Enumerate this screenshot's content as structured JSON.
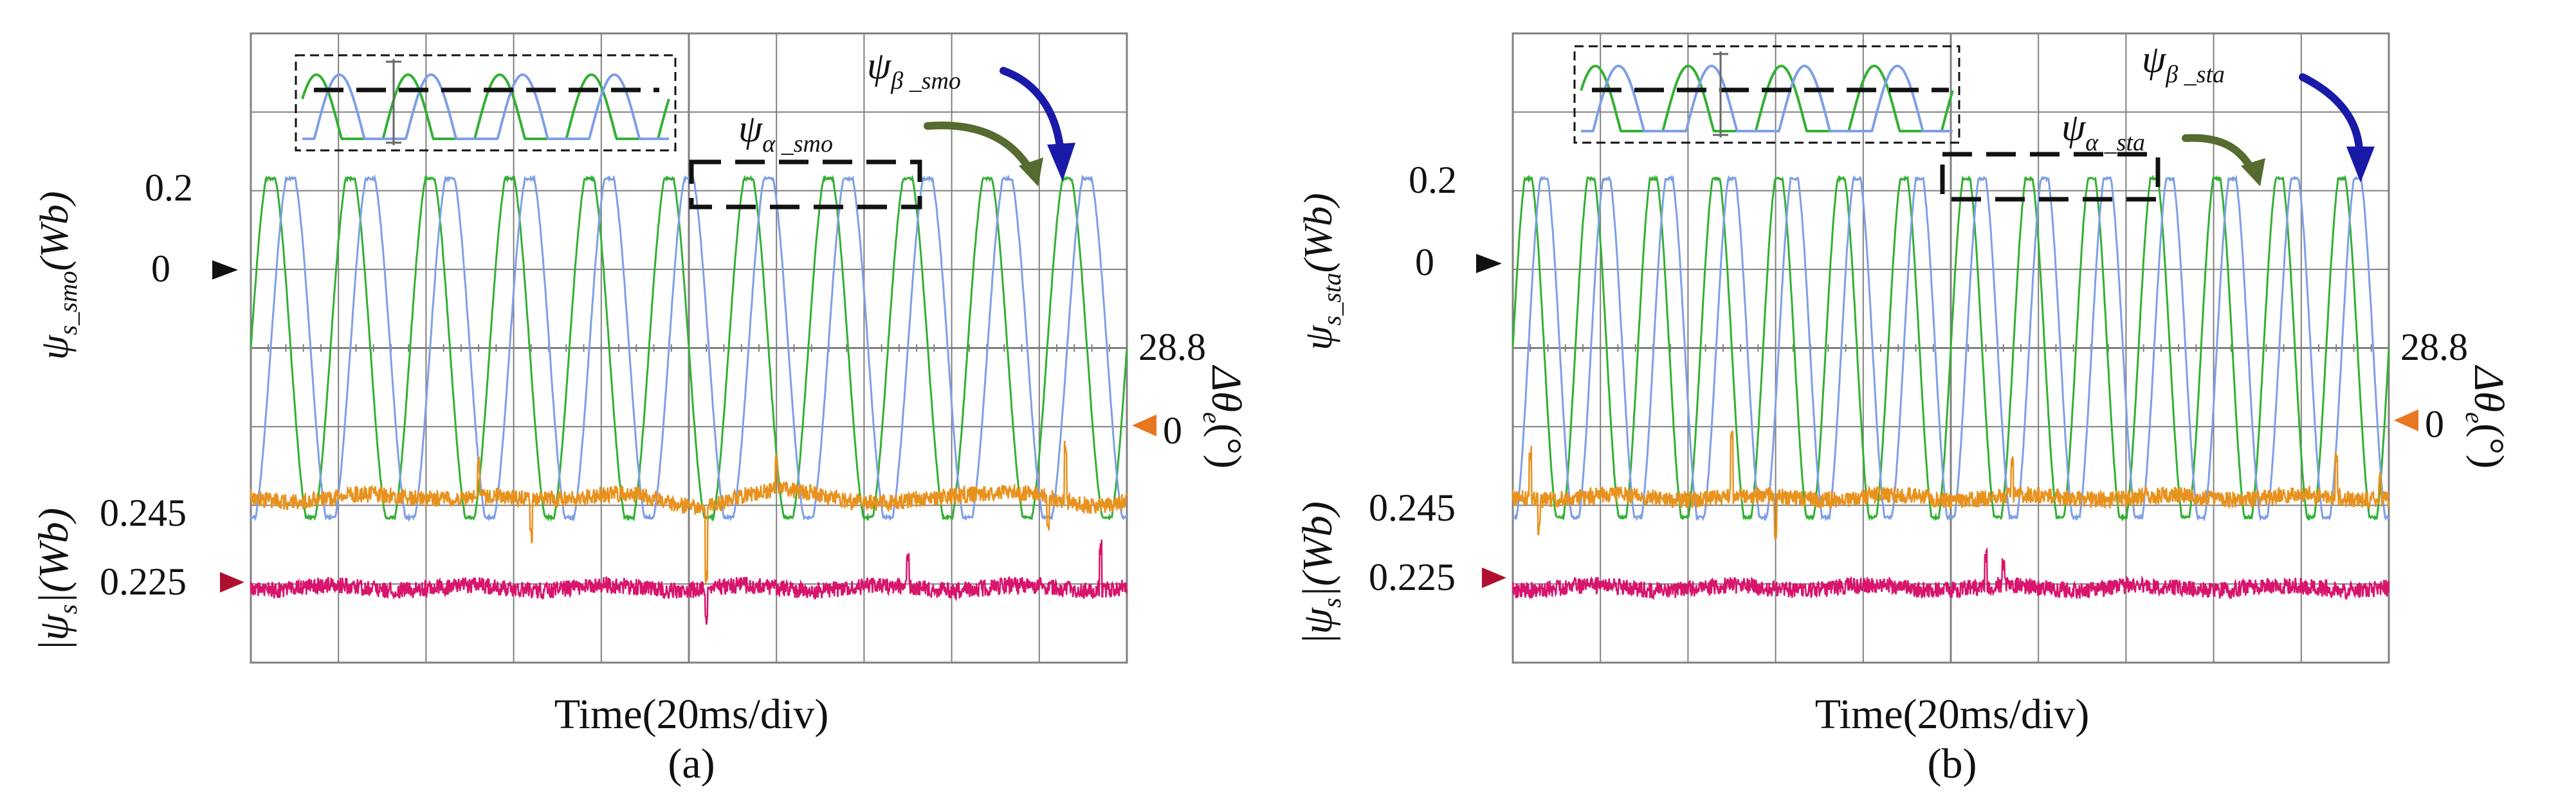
{
  "colors": {
    "psi_alpha": "#33b033",
    "psi_beta": "#7f9fe6",
    "theta": "#e8921e",
    "psi_mag": "#d8146c",
    "grid": "#808080",
    "zoom_arrow_alpha": "#556b2f",
    "zoom_arrow_beta": "#1a1aa8",
    "marker_zero": "#111111",
    "marker_theta": "#e87722",
    "marker_mag": "#b01030"
  },
  "panels": [
    {
      "caption": "(a)",
      "xlabel": "Time(20ms/div)",
      "ylabel_psi_main": "ψ",
      "ylabel_psi_sub": "s_smo",
      "ylabel_psi_unit": "(Wb)",
      "ylabel_mag_bar": "|",
      "ylabel_mag_main": "ψ",
      "ylabel_mag_sub": "s",
      "ylabel_mag_unit": "|(Wb)",
      "ylabel_theta_main": "Δθ",
      "ylabel_theta_sub": "e",
      "ylabel_theta_unit": "(°)",
      "tick_psi_02": "0.2",
      "tick_psi_0": "0",
      "tick_theta_288": "28.8",
      "tick_theta_0": "0",
      "tick_mag_0245": "0.245",
      "tick_mag_0225": "0.225",
      "label_beta_main": "ψ",
      "label_beta_sub": "β _smo",
      "label_alpha_main": "ψ",
      "label_alpha_sub": "α _smo"
    },
    {
      "caption": "(b)",
      "xlabel": "Time(20ms/div)",
      "ylabel_psi_main": "ψ",
      "ylabel_psi_sub": "s_sta",
      "ylabel_psi_unit": "(Wb)",
      "ylabel_mag_bar": "|",
      "ylabel_mag_main": "ψ",
      "ylabel_mag_sub": "s",
      "ylabel_mag_unit": "|(Wb)",
      "ylabel_theta_main": "Δθ",
      "ylabel_theta_sub": "e",
      "ylabel_theta_unit": "(°)",
      "tick_psi_02": "0.2",
      "tick_psi_0": "0",
      "tick_theta_288": "28.8",
      "tick_theta_0": "0",
      "tick_mag_0245": "0.245",
      "tick_mag_0225": "0.225",
      "label_beta_main": "ψ",
      "label_beta_sub": "β _sta",
      "label_alpha_main": "ψ",
      "label_alpha_sub": "α _sta"
    }
  ],
  "chart_data": [
    {
      "type": "line",
      "panel": "a",
      "xlabel": "Time(20ms/div)",
      "x_divisions": 10,
      "x_unit_per_div_ms": 20,
      "y_divisions": 8,
      "series": [
        {
          "name": "ψα_smo",
          "kind": "sine",
          "amplitude_wb": 0.24,
          "cycles": 11,
          "phase_deg": 0,
          "offset_div": 0
        },
        {
          "name": "ψβ_smo",
          "kind": "sine",
          "amplitude_wb": 0.24,
          "cycles": 11,
          "phase_deg": -90,
          "offset_div": 0
        },
        {
          "name": "Δθe",
          "kind": "noise",
          "level_deg": 0,
          "scale_deg_per_div": 28.8,
          "ripple_deg": 3,
          "spikes": [
            [
              0.26,
              0.5
            ],
            [
              0.32,
              -0.55
            ],
            [
              0.52,
              -1.0
            ],
            [
              0.6,
              0.4
            ],
            [
              0.93,
              0.75
            ],
            [
              0.91,
              -0.45
            ]
          ]
        },
        {
          "name": "|ψs|",
          "kind": "noise",
          "level_wb": 0.225,
          "scale_wb_per_div": 0.02,
          "ripple_wb": 0.004,
          "spikes": [
            [
              0.52,
              -0.45
            ],
            [
              0.75,
              0.45
            ],
            [
              0.97,
              0.6
            ]
          ]
        }
      ],
      "zero_level_psi_div": 4.0,
      "psi_02_level_div": 5.85,
      "theta_zero_level_div": 2.1,
      "mag_0225_level_div": 0.2
    },
    {
      "type": "line",
      "panel": "b",
      "xlabel": "Time(20ms/div)",
      "x_divisions": 10,
      "x_unit_per_div_ms": 20,
      "y_divisions": 8,
      "series": [
        {
          "name": "ψα_sta",
          "kind": "sine",
          "amplitude_wb": 0.24,
          "cycles": 14,
          "phase_deg": 0,
          "offset_div": 0
        },
        {
          "name": "ψβ_sta",
          "kind": "sine",
          "amplitude_wb": 0.24,
          "cycles": 14,
          "phase_deg": -90,
          "offset_div": 0
        },
        {
          "name": "Δθe",
          "kind": "noise",
          "level_deg": 0,
          "scale_deg_per_div": 28.8,
          "ripple_deg": 3,
          "spikes": [
            [
              0.02,
              0.65
            ],
            [
              0.03,
              -0.4
            ],
            [
              0.25,
              0.9
            ],
            [
              0.3,
              -0.5
            ],
            [
              0.57,
              0.45
            ],
            [
              0.94,
              0.55
            ],
            [
              0.99,
              0.3
            ]
          ]
        },
        {
          "name": "|ψs|",
          "kind": "noise",
          "level_wb": 0.225,
          "scale_wb_per_div": 0.02,
          "ripple_wb": 0.003,
          "spikes": [
            [
              0.54,
              0.4
            ],
            [
              0.56,
              0.3
            ]
          ]
        }
      ],
      "zero_level_psi_div": 4.0,
      "psi_02_level_div": 5.85,
      "theta_zero_level_div": 2.1,
      "mag_0225_level_div": 0.2
    }
  ]
}
